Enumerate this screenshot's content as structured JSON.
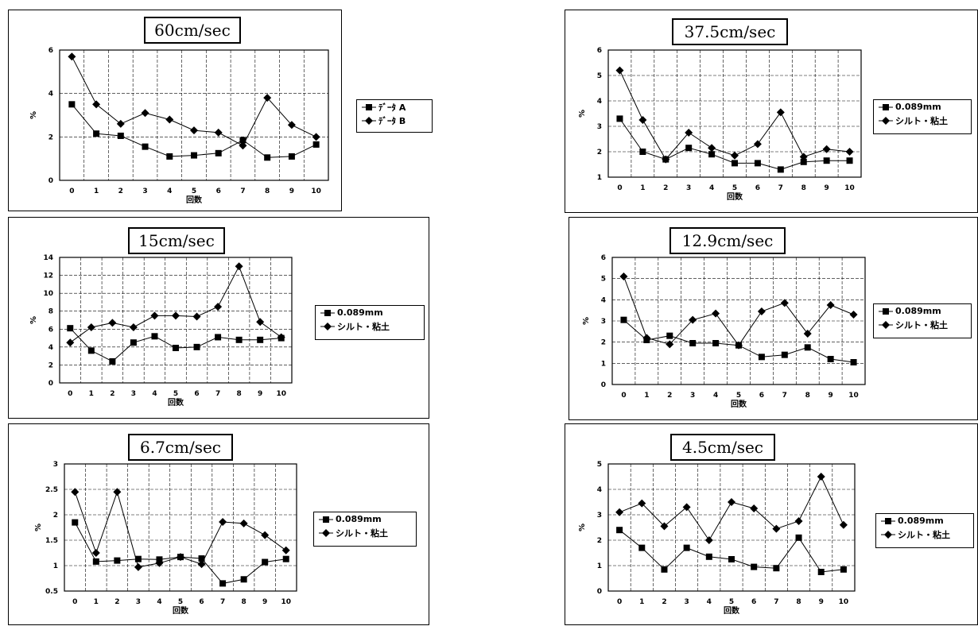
{
  "chart_data": [
    {
      "type": "line",
      "title": "60cm/sec",
      "xlabel": "回数",
      "ylabel": "%",
      "x": [
        0,
        1,
        2,
        3,
        4,
        5,
        6,
        7,
        8,
        9,
        10
      ],
      "ylim": [
        0,
        6
      ],
      "yticks": [
        "0",
        "2",
        "4",
        "6"
      ],
      "xticks": [
        "0",
        "1",
        "2",
        "3",
        "4",
        "5",
        "6",
        "7",
        "8",
        "9",
        "10"
      ],
      "grid": true,
      "legend_position": "right",
      "series": [
        {
          "name": "ﾃﾞｰﾀ A",
          "marker": "square",
          "values": [
            3.5,
            2.15,
            2.05,
            1.55,
            1.1,
            1.15,
            1.25,
            1.85,
            1.05,
            1.1,
            1.65
          ]
        },
        {
          "name": "ﾃﾞｰﾀ B",
          "marker": "diamond",
          "values": [
            5.7,
            3.5,
            2.6,
            3.1,
            2.8,
            2.3,
            2.2,
            1.6,
            3.8,
            2.55,
            2.0
          ]
        }
      ]
    },
    {
      "type": "line",
      "title": "37.5cm/sec",
      "xlabel": "回数",
      "ylabel": "%",
      "x": [
        0,
        1,
        2,
        3,
        4,
        5,
        6,
        7,
        8,
        9,
        10
      ],
      "ylim": [
        1,
        6
      ],
      "yticks": [
        "1",
        "2",
        "3",
        "4",
        "5",
        "6"
      ],
      "xticks": [
        "0",
        "1",
        "2",
        "3",
        "4",
        "5",
        "6",
        "7",
        "8",
        "9",
        "10"
      ],
      "grid": true,
      "legend_position": "right",
      "series": [
        {
          "name": "0.089mm",
          "marker": "square",
          "values": [
            3.3,
            2.0,
            1.7,
            2.15,
            1.9,
            1.55,
            1.55,
            1.3,
            1.6,
            1.65,
            1.65
          ]
        },
        {
          "name": "シルト・粘土",
          "marker": "diamond",
          "values": [
            5.2,
            3.25,
            1.7,
            2.75,
            2.15,
            1.85,
            2.3,
            3.55,
            1.8,
            2.1,
            2.0
          ]
        }
      ]
    },
    {
      "type": "line",
      "title": "15cm/sec",
      "xlabel": "回数",
      "ylabel": "%",
      "x": [
        0,
        1,
        2,
        3,
        4,
        5,
        6,
        7,
        8,
        9,
        10
      ],
      "ylim": [
        0,
        14
      ],
      "yticks": [
        "0",
        "2",
        "4",
        "6",
        "8",
        "10",
        "12",
        "14"
      ],
      "xticks": [
        "0",
        "1",
        "2",
        "3",
        "4",
        "5",
        "6",
        "7",
        "8",
        "9",
        "10"
      ],
      "grid": true,
      "legend_position": "right",
      "series": [
        {
          "name": "0.089mm",
          "marker": "square",
          "values": [
            6.1,
            3.6,
            2.4,
            4.5,
            5.2,
            3.9,
            4.0,
            5.1,
            4.8,
            4.8,
            5.0
          ]
        },
        {
          "name": "シルト・粘土",
          "marker": "diamond",
          "values": [
            4.5,
            6.2,
            6.7,
            6.2,
            7.5,
            7.5,
            7.4,
            8.5,
            13.0,
            6.8,
            5.1
          ]
        }
      ]
    },
    {
      "type": "line",
      "title": "12.9cm/sec",
      "xlabel": "回数",
      "ylabel": "%",
      "x": [
        0,
        1,
        2,
        3,
        4,
        5,
        6,
        7,
        8,
        9,
        10
      ],
      "ylim": [
        0,
        6
      ],
      "yticks": [
        "0",
        "1",
        "2",
        "3",
        "4",
        "5",
        "6"
      ],
      "xticks": [
        "0",
        "1",
        "2",
        "3",
        "4",
        "5",
        "6",
        "7",
        "8",
        "9",
        "10"
      ],
      "grid": true,
      "legend_position": "right",
      "series": [
        {
          "name": "0.089mm",
          "marker": "square",
          "values": [
            3.05,
            2.1,
            2.3,
            1.95,
            1.95,
            1.85,
            1.3,
            1.4,
            1.75,
            1.2,
            1.05
          ]
        },
        {
          "name": "シルト・粘土",
          "marker": "diamond",
          "values": [
            5.1,
            2.2,
            1.9,
            3.05,
            3.35,
            1.85,
            3.45,
            3.85,
            2.4,
            3.75,
            3.3
          ]
        }
      ]
    },
    {
      "type": "line",
      "title": "6.7cm/sec",
      "xlabel": "回数",
      "ylabel": "%",
      "x": [
        0,
        1,
        2,
        3,
        4,
        5,
        6,
        7,
        8,
        9,
        10
      ],
      "ylim": [
        0.5,
        3
      ],
      "yticks": [
        "0.5",
        "1",
        "1.5",
        "2",
        "2.5",
        "3"
      ],
      "xticks": [
        "0",
        "1",
        "2",
        "3",
        "4",
        "5",
        "6",
        "7",
        "8",
        "9",
        "10"
      ],
      "grid": true,
      "legend_position": "right",
      "series": [
        {
          "name": "0.089mm",
          "marker": "square",
          "values": [
            1.85,
            1.08,
            1.1,
            1.13,
            1.12,
            1.17,
            1.14,
            0.65,
            0.73,
            1.07,
            1.13
          ]
        },
        {
          "name": "シルト・粘土",
          "marker": "diamond",
          "values": [
            2.45,
            1.25,
            2.45,
            0.97,
            1.05,
            1.17,
            1.03,
            1.86,
            1.83,
            1.6,
            1.3
          ]
        }
      ]
    },
    {
      "type": "line",
      "title": "4.5cm/sec",
      "xlabel": "回数",
      "ylabel": "%",
      "x": [
        0,
        1,
        2,
        3,
        4,
        5,
        6,
        7,
        8,
        9,
        10
      ],
      "ylim": [
        0,
        5
      ],
      "yticks": [
        "0",
        "1",
        "2",
        "3",
        "4",
        "5"
      ],
      "xticks": [
        "0",
        "1",
        "2",
        "3",
        "4",
        "5",
        "6",
        "7",
        "8",
        "9",
        "10"
      ],
      "grid": true,
      "legend_position": "right",
      "series": [
        {
          "name": "0.089mm",
          "marker": "square",
          "values": [
            2.4,
            1.7,
            0.85,
            1.7,
            1.35,
            1.25,
            0.95,
            0.9,
            2.1,
            0.75,
            0.85
          ]
        },
        {
          "name": "シルト・粘土",
          "marker": "diamond",
          "values": [
            3.1,
            3.45,
            2.55,
            3.3,
            2.0,
            3.5,
            3.25,
            2.45,
            2.75,
            4.5,
            2.6
          ]
        }
      ]
    }
  ]
}
